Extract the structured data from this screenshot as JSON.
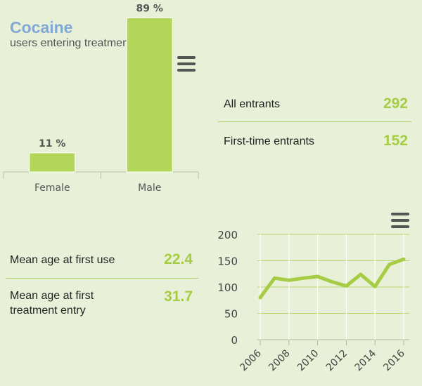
{
  "header": {
    "title": "Cocaine",
    "subtitle": "users entering treatment"
  },
  "icons": {
    "bar_menu": "hamburger-menu-icon",
    "line_menu": "hamburger-menu-icon"
  },
  "colors": {
    "title": "#82a8d4",
    "accent_green": "#a6cc45",
    "bar_fill": "#b2d65a",
    "background": "#e8f0d8"
  },
  "stats_top": [
    {
      "label": "All entrants",
      "value": "292"
    },
    {
      "label": "First-time entrants",
      "value": "152"
    }
  ],
  "stats_bottom": [
    {
      "label": "Mean age at first use",
      "value": "22.4"
    },
    {
      "label": "Mean age at first treatment entry",
      "value": "31.7"
    }
  ],
  "chart_data": [
    {
      "type": "bar",
      "categories": [
        "Female",
        "Male"
      ],
      "values": [
        11,
        89
      ],
      "data_labels": [
        "11 %",
        "89 %"
      ],
      "ylim": [
        0,
        100
      ],
      "grid": false
    },
    {
      "type": "line",
      "x": [
        2006,
        2007,
        2008,
        2009,
        2010,
        2011,
        2012,
        2013,
        2014,
        2015,
        2016
      ],
      "y": [
        80,
        117,
        113,
        117,
        120,
        110,
        102,
        124,
        101,
        143,
        153
      ],
      "xticks": [
        2006,
        2008,
        2010,
        2012,
        2014,
        2016
      ],
      "yticks": [
        0,
        50,
        100,
        150,
        200
      ],
      "ylim": [
        0,
        200
      ],
      "grid": true
    }
  ]
}
